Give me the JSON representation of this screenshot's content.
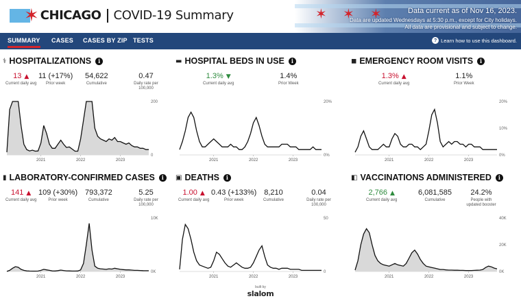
{
  "header": {
    "city": "CHICAGO",
    "title": "COVID-19 Summary",
    "as_of": "Data current as of Nov 16, 2023.",
    "note_line1": "Data are updated Wednesdays at 5:30 p.m., except for City holidays.",
    "note_line2": "All data are provisional and subject to change."
  },
  "nav": {
    "tabs": [
      "SUMMARY",
      "CASES",
      "CASES BY ZIP",
      "TESTS"
    ],
    "active": "SUMMARY",
    "help": "Learn how to use this dashboard."
  },
  "panels": [
    {
      "id": "hospitalizations",
      "title": "HOSPITALIZATIONS",
      "icon": "stethoscope-icon",
      "stats": [
        {
          "value": "13",
          "trend": "up",
          "color": "red",
          "label": "Current daily avg"
        },
        {
          "value": "11 (+17%)",
          "label": "Prior week"
        },
        {
          "value": "54,622",
          "label": "Cumulative"
        },
        {
          "value": "0.47",
          "label": "Daily rate per 100,000"
        }
      ],
      "chart_data": {
        "type": "area",
        "x_ticks": [
          "2021",
          "2022",
          "2023"
        ],
        "y_ticks": [
          "200",
          "0"
        ],
        "ylim": [
          0,
          200
        ],
        "shape": [
          10,
          170,
          230,
          290,
          250,
          110,
          40,
          20,
          15,
          18,
          14,
          15,
          45,
          110,
          80,
          40,
          25,
          25,
          40,
          55,
          40,
          28,
          30,
          22,
          14,
          14,
          60,
          130,
          260,
          560,
          300,
          100,
          70,
          60,
          55,
          50,
          60,
          55,
          65,
          50,
          50,
          45,
          40,
          45,
          35,
          30,
          30,
          25,
          25,
          20,
          20
        ]
      }
    },
    {
      "id": "hospital-beds",
      "title": "HOSPITAL BEDS IN USE",
      "icon": "bed-icon",
      "stats": [
        {
          "value": "1.3%",
          "trend": "down",
          "color": "green",
          "label": "Current daily avg"
        },
        {
          "value": "1.4%",
          "label": "Prior Week"
        }
      ],
      "chart_data": {
        "type": "line",
        "x_ticks": [
          "2021",
          "2022",
          "2023"
        ],
        "y_ticks": [
          "20%",
          "0%"
        ],
        "ylim": [
          0,
          20
        ],
        "shape": [
          2,
          5,
          9,
          14,
          16,
          14,
          9,
          5,
          3,
          3,
          4,
          5,
          6,
          5,
          4,
          3,
          3,
          3,
          4,
          3,
          3,
          2,
          2,
          3,
          5,
          8,
          12,
          14,
          11,
          7,
          4,
          3,
          3,
          3,
          3,
          3,
          4,
          4,
          4,
          3,
          3,
          3,
          2,
          2,
          2,
          2,
          2,
          3,
          2,
          2,
          2
        ]
      }
    },
    {
      "id": "er-visits",
      "title": "EMERGENCY ROOM VISITS",
      "icon": "ambulance-icon",
      "stats": [
        {
          "value": "1.3%",
          "trend": "up",
          "color": "red",
          "label": "Current daily avg"
        },
        {
          "value": "1.1%",
          "label": "Prior Week"
        }
      ],
      "chart_data": {
        "type": "line",
        "x_ticks": [
          "2021",
          "2022",
          "2023"
        ],
        "y_ticks": [
          "20%",
          "10%",
          "0%"
        ],
        "ylim": [
          0,
          20
        ],
        "shape": [
          1,
          3,
          7,
          9,
          6,
          3,
          2,
          2,
          2,
          3,
          4,
          3,
          3,
          6,
          8,
          7,
          4,
          3,
          3,
          4,
          4,
          3,
          3,
          2,
          3,
          4,
          9,
          15,
          17,
          12,
          5,
          3,
          4,
          5,
          4,
          5,
          5,
          4,
          4,
          3,
          4,
          4,
          3,
          3,
          3,
          2,
          2,
          2,
          2,
          2,
          2
        ]
      }
    },
    {
      "id": "lab-cases",
      "title": "LABORATORY-CONFIRMED CASES",
      "icon": "bar-chart-icon",
      "stats": [
        {
          "value": "141",
          "trend": "up",
          "color": "red",
          "label": "Current daily avg"
        },
        {
          "value": "109 (+30%)",
          "label": "Prior week"
        },
        {
          "value": "793,372",
          "label": "Cumulative"
        },
        {
          "value": "5.25",
          "label": "Daily rate per 100,000"
        }
      ],
      "chart_data": {
        "type": "area",
        "x_ticks": [
          "2021",
          "2022",
          "2023"
        ],
        "y_ticks": [
          "10K",
          "0K"
        ],
        "ylim": [
          0,
          10000
        ],
        "shape": [
          10,
          200,
          600,
          900,
          800,
          400,
          200,
          100,
          80,
          70,
          60,
          80,
          200,
          400,
          300,
          200,
          100,
          90,
          150,
          250,
          180,
          120,
          100,
          80,
          80,
          90,
          300,
          1500,
          5000,
          9000,
          4000,
          1000,
          600,
          500,
          450,
          400,
          500,
          450,
          600,
          500,
          400,
          350,
          300,
          300,
          250,
          200,
          200,
          180,
          150,
          140,
          140
        ]
      }
    },
    {
      "id": "deaths",
      "title": "DEATHS",
      "icon": "hospital-icon",
      "stats": [
        {
          "value": "1.00",
          "trend": "up",
          "color": "red",
          "label": "Current daily avg"
        },
        {
          "value": "0.43 (+133%)",
          "label": "Prior week"
        },
        {
          "value": "8,210",
          "label": "Cumulative"
        },
        {
          "value": "0.04",
          "label": "Daily rate per 100,000"
        }
      ],
      "chart_data": {
        "type": "line",
        "x_ticks": [
          "2021",
          "2022",
          "2023"
        ],
        "y_ticks": [
          "50",
          "0"
        ],
        "ylim": [
          0,
          50
        ],
        "shape": [
          2,
          30,
          44,
          40,
          30,
          18,
          10,
          6,
          5,
          4,
          3,
          4,
          10,
          18,
          16,
          12,
          8,
          5,
          4,
          6,
          8,
          6,
          4,
          3,
          3,
          4,
          8,
          14,
          20,
          24,
          14,
          6,
          4,
          3,
          3,
          2,
          3,
          3,
          3,
          2,
          2,
          2,
          2,
          1,
          1,
          1,
          1,
          1,
          1,
          1,
          1
        ]
      }
    },
    {
      "id": "vaccinations",
      "title": "VACCINATIONS ADMINISTERED",
      "icon": "syringe-icon",
      "stats": [
        {
          "value": "2,766",
          "trend": "up",
          "color": "green",
          "label": "Current daily avg"
        },
        {
          "value": "6,081,585",
          "label": "Cumulative"
        },
        {
          "value": "24.2%",
          "label": "People with updated booster"
        }
      ],
      "chart_data": {
        "type": "area",
        "x_ticks": [
          "2021",
          "2022",
          "2023"
        ],
        "y_ticks": [
          "40K",
          "20K",
          "0K"
        ],
        "ylim": [
          0,
          40000
        ],
        "shape": [
          1000,
          8000,
          20000,
          28000,
          32000,
          29000,
          20000,
          12000,
          8000,
          6000,
          5000,
          4500,
          4000,
          5000,
          6000,
          5000,
          4500,
          4000,
          6000,
          10000,
          14000,
          16000,
          13000,
          9000,
          6000,
          4000,
          3500,
          3000,
          2500,
          2000,
          1500,
          1500,
          1200,
          1000,
          1000,
          900,
          900,
          800,
          800,
          700,
          700,
          700,
          800,
          900,
          1000,
          1500,
          3000,
          4000,
          3500,
          2500,
          2000
        ]
      }
    }
  ],
  "footer": {
    "built_by": "built by",
    "brand": "slalom"
  }
}
